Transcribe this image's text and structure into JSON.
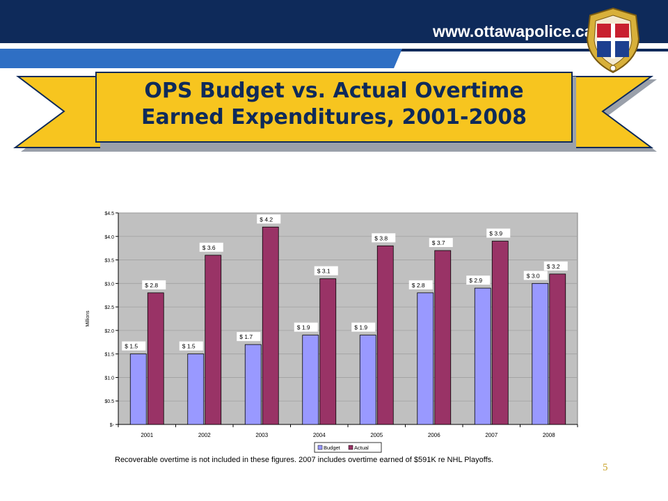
{
  "header": {
    "url": "www.ottawapolice.ca",
    "emblem_icon": "ottawa-police-crest-icon"
  },
  "slide": {
    "title_line1": "OPS Budget vs. Actual Overtime",
    "title_line2": "Earned Expenditures, 2001-2008",
    "note": "Recoverable overtime is not included in these figures.  2007 includes overtime earned of $591K re NHL Playoffs.",
    "page_number": "5"
  },
  "colors": {
    "navy": "#0e2a5a",
    "blue_stripe": "#2f6fc4",
    "ribbon_gold": "#f7c51f",
    "budget": "#9999ff",
    "actual": "#993366",
    "plot_bg": "#c0c0c0"
  },
  "chart_data": {
    "type": "bar",
    "categories": [
      "2001",
      "2002",
      "2003",
      "2004",
      "2005",
      "2006",
      "2007",
      "2008"
    ],
    "series": [
      {
        "name": "Budget",
        "values": [
          1.5,
          1.5,
          1.7,
          1.9,
          1.9,
          2.8,
          2.9,
          3.0
        ],
        "labels": [
          "$ 1.5",
          "$ 1.5",
          "$ 1.7",
          "$ 1.9",
          "$ 1.9",
          "$ 2.8",
          "$ 2.9",
          "$ 3.0"
        ]
      },
      {
        "name": "Actual",
        "values": [
          2.8,
          3.6,
          4.2,
          3.1,
          3.8,
          3.7,
          3.9,
          3.2
        ],
        "labels": [
          "$ 2.8",
          "$ 3.6",
          "$ 4.2",
          "$ 3.1",
          "$ 3.8",
          "$ 3.7",
          "$ 3.9",
          "$ 3.2"
        ]
      }
    ],
    "ylabel": "Millions",
    "ylim": [
      0,
      4.5
    ],
    "yticks": [
      0,
      0.5,
      1,
      1.5,
      2,
      2.5,
      3,
      3.5,
      4,
      4.5
    ],
    "ytick_labels": [
      "$-",
      "$0.5",
      "$1.0",
      "$1.5",
      "$2.0",
      "$2.5",
      "$3.0",
      "$3.5",
      "$4.0",
      "$4.5"
    ],
    "grid": true,
    "legend": "bottom"
  }
}
